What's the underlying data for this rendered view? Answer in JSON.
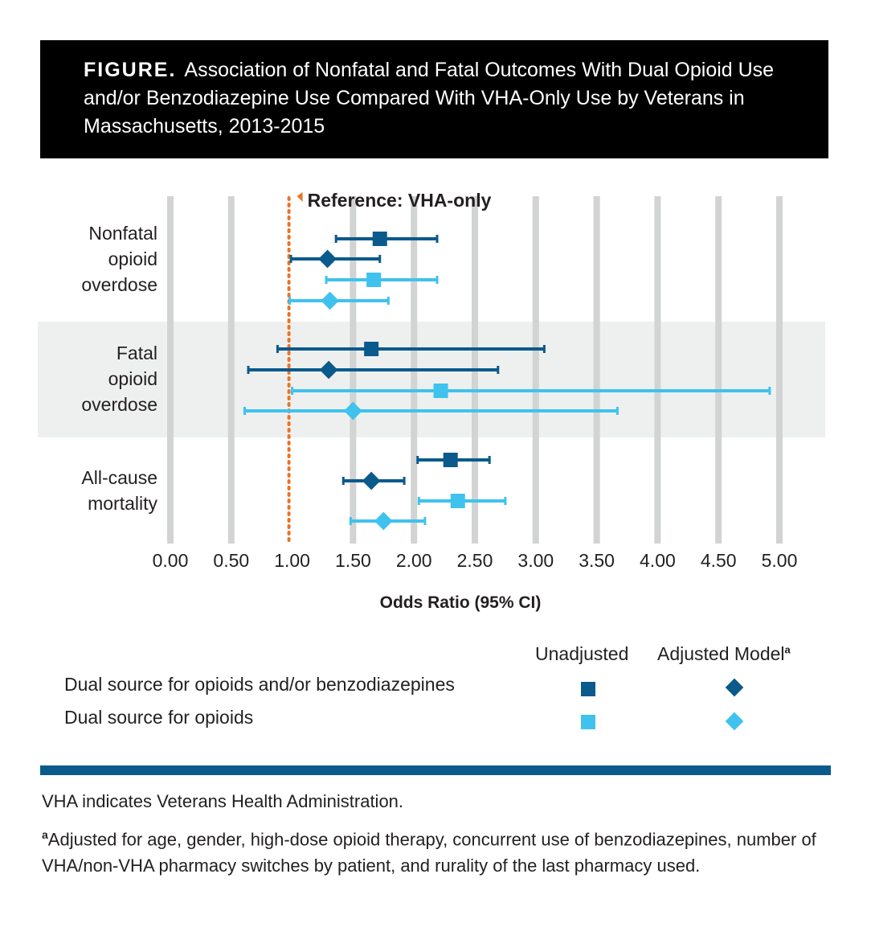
{
  "figure": {
    "label": "FIGURE.",
    "title": "Association of Nonfatal and Fatal Outcomes With Dual Opioid Use and/or Benzodiazepine Use Compared With VHA-Only Use by Veterans in Massachusetts, 2013-2015"
  },
  "chart_data": {
    "type": "forest",
    "xlabel": "Odds Ratio (95% CI)",
    "xlim": [
      0,
      5
    ],
    "ticks": [
      "0.00",
      "0.50",
      "1.00",
      "1.50",
      "2.00",
      "2.50",
      "3.00",
      "3.50",
      "4.00",
      "4.50",
      "5.00"
    ],
    "reference": {
      "value": 1.0,
      "label": "Reference: VHA-only",
      "color": "#e8742a"
    },
    "groups": [
      {
        "lines": [
          "Nonfatal",
          "opioid",
          "overdose"
        ],
        "shaded": false,
        "rows": [
          {
            "series": "opioids_benzo",
            "model": "unadjusted",
            "or": 1.72,
            "lo": 1.36,
            "hi": 2.19
          },
          {
            "series": "opioids_benzo",
            "model": "adjusted",
            "or": 1.29,
            "lo": 0.99,
            "hi": 1.72
          },
          {
            "series": "opioids",
            "model": "unadjusted",
            "or": 1.67,
            "lo": 1.28,
            "hi": 2.19
          },
          {
            "series": "opioids",
            "model": "adjusted",
            "or": 1.31,
            "lo": 0.98,
            "hi": 1.79
          }
        ]
      },
      {
        "lines": [
          "Fatal",
          "opioid",
          "overdose"
        ],
        "shaded": true,
        "rows": [
          {
            "series": "opioids_benzo",
            "model": "unadjusted",
            "or": 1.65,
            "lo": 0.88,
            "hi": 3.07
          },
          {
            "series": "opioids_benzo",
            "model": "adjusted",
            "or": 1.3,
            "lo": 0.64,
            "hi": 2.69
          },
          {
            "series": "opioids",
            "model": "unadjusted",
            "or": 2.22,
            "lo": 1.0,
            "hi": 4.92
          },
          {
            "series": "opioids",
            "model": "adjusted",
            "or": 1.5,
            "lo": 0.61,
            "hi": 3.67
          }
        ]
      },
      {
        "lines": [
          "All-cause",
          "mortality"
        ],
        "shaded": false,
        "rows": [
          {
            "series": "opioids_benzo",
            "model": "unadjusted",
            "or": 2.3,
            "lo": 2.03,
            "hi": 2.62
          },
          {
            "series": "opioids_benzo",
            "model": "adjusted",
            "or": 1.65,
            "lo": 1.42,
            "hi": 1.92
          },
          {
            "series": "opioids",
            "model": "unadjusted",
            "or": 2.36,
            "lo": 2.04,
            "hi": 2.75
          },
          {
            "series": "opioids",
            "model": "adjusted",
            "or": 1.75,
            "lo": 1.48,
            "hi": 2.09
          }
        ]
      }
    ],
    "series_colors": {
      "opioids_benzo": "#0a5a8c",
      "opioids": "#3fc2ee"
    }
  },
  "legend": {
    "col_unadjusted": "Unadjusted",
    "col_adjusted": "Adjusted Model",
    "col_adjusted_sup": "a",
    "row1": "Dual source for opioids and/or benzodiazepines",
    "row2": "Dual source for opioids"
  },
  "footnotes": {
    "abbrev": "VHA indicates Veterans Health Administration.",
    "a_mark": "a",
    "a_text": "Adjusted for age, gender, high-dose opioid therapy, concurrent use of benzodiazepines, number of VHA/non-VHA pharmacy switches by patient, and rurality of the last pharmacy used."
  }
}
